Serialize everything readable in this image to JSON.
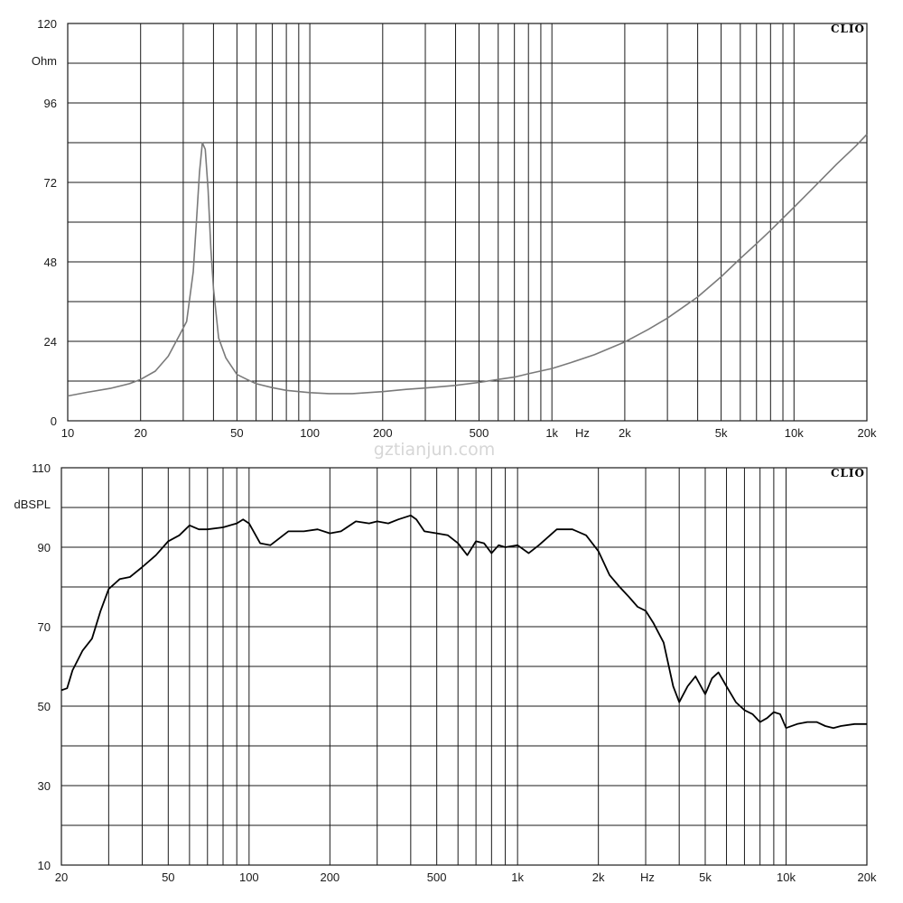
{
  "watermark": "gztianjun.com",
  "colors": {
    "grid": "#1a1a1a",
    "impedance_trace": "#7a7a7a",
    "spl_trace": "#000000"
  },
  "chart_data": [
    {
      "type": "line",
      "title": "",
      "brand": "CLIO",
      "ylabel": "Ohm",
      "x_scale": "log",
      "xlim": [
        10,
        20000
      ],
      "ylim": [
        0,
        120
      ],
      "y_ticks": [
        "0",
        "24",
        "48",
        "72",
        "96",
        "120"
      ],
      "x_ticks": [
        "10",
        "20",
        "50",
        "100",
        "200",
        "500",
        "1k",
        "Hz",
        "2k",
        "5k",
        "10k",
        "20k"
      ],
      "grid": true,
      "series": [
        {
          "x": [
            10,
            12,
            15,
            18,
            20,
            23,
            26,
            29,
            31,
            33,
            34,
            35,
            36,
            37,
            38,
            39,
            40,
            42,
            45,
            50,
            55,
            60,
            70,
            80,
            100,
            120,
            150,
            200,
            250,
            300,
            400,
            500,
            600,
            700,
            800,
            1000,
            1200,
            1500,
            2000,
            2500,
            3000,
            4000,
            5000,
            6000,
            7000,
            8000,
            10000,
            12000,
            15000,
            18000,
            20000
          ],
          "y": [
            7.5,
            8.6,
            9.8,
            11.2,
            12.5,
            15,
            19.5,
            26,
            30,
            45,
            60,
            75,
            84,
            82,
            70,
            52,
            40,
            25,
            19,
            14,
            12.5,
            11.2,
            10,
            9.2,
            8.5,
            8.2,
            8.2,
            8.8,
            9.5,
            9.9,
            10.7,
            11.6,
            12.5,
            13.2,
            14.2,
            15.8,
            17.6,
            20,
            23.8,
            27.6,
            31,
            37.4,
            43.5,
            49,
            53.5,
            57.5,
            64.5,
            70.3,
            77.5,
            83,
            86.5
          ]
        }
      ]
    },
    {
      "type": "line",
      "title": "",
      "brand": "CLIO",
      "ylabel": "dBSPL",
      "x_scale": "log",
      "xlim": [
        20,
        20000
      ],
      "ylim": [
        10,
        110
      ],
      "y_ticks": [
        "10",
        "30",
        "50",
        "70",
        "90",
        "110"
      ],
      "x_ticks": [
        "20",
        "50",
        "100",
        "200",
        "500",
        "1k",
        "2k",
        "Hz",
        "5k",
        "10k",
        "20k"
      ],
      "grid": true,
      "series": [
        {
          "x": [
            20,
            21,
            22,
            24,
            26,
            28,
            30,
            33,
            36,
            40,
            45,
            50,
            55,
            60,
            65,
            70,
            80,
            90,
            95,
            100,
            110,
            120,
            140,
            160,
            180,
            200,
            220,
            250,
            280,
            300,
            330,
            360,
            400,
            420,
            450,
            500,
            550,
            600,
            650,
            700,
            750,
            800,
            850,
            900,
            1000,
            1100,
            1200,
            1400,
            1600,
            1800,
            2000,
            2200,
            2400,
            2600,
            2800,
            3000,
            3200,
            3500,
            3800,
            4000,
            4300,
            4600,
            5000,
            5300,
            5600,
            6000,
            6500,
            7000,
            7500,
            8000,
            8500,
            9000,
            9500,
            10000,
            11000,
            12000,
            13000,
            14000,
            15000,
            16000,
            18000,
            20000
          ],
          "y": [
            54,
            54.5,
            59,
            64,
            67,
            74,
            79.5,
            82,
            82.5,
            85,
            88,
            91.5,
            93,
            95.5,
            94.5,
            94.5,
            95,
            96,
            97,
            96,
            91,
            90.5,
            94,
            94,
            94.5,
            93.5,
            94,
            96.5,
            96,
            96.5,
            96,
            97,
            98,
            97,
            94,
            93.5,
            93,
            91,
            88,
            91.5,
            91,
            88.5,
            90.5,
            90,
            90.5,
            88.5,
            90.5,
            94.5,
            94.5,
            93,
            89,
            83,
            80,
            77.5,
            75,
            74,
            71,
            66,
            55,
            51,
            55,
            57.5,
            53,
            57,
            58.5,
            55,
            51,
            49,
            48,
            46,
            47,
            48.5,
            48,
            44.5,
            45.5,
            46,
            46,
            45,
            44.5,
            45,
            45.5,
            45.5
          ]
        }
      ]
    }
  ]
}
